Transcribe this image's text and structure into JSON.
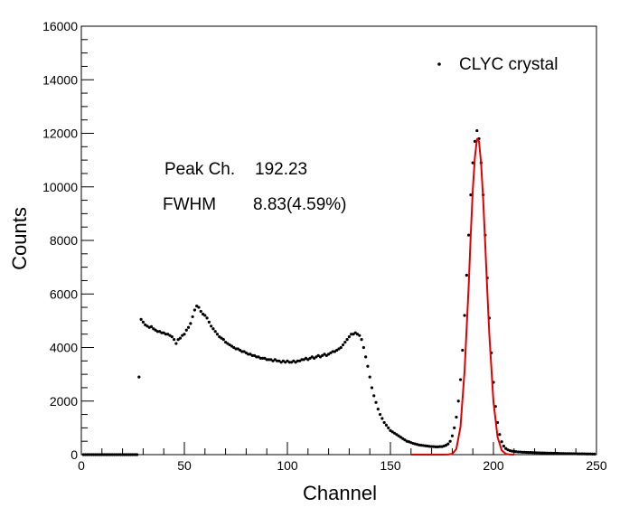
{
  "chart_data": {
    "type": "scatter",
    "title": "",
    "xlabel": "Channel",
    "ylabel": "Counts",
    "xlim": [
      0,
      250
    ],
    "ylim": [
      0,
      16000
    ],
    "x_ticks": [
      0,
      50,
      100,
      150,
      200,
      250
    ],
    "y_ticks": [
      0,
      2000,
      4000,
      6000,
      8000,
      10000,
      12000,
      14000,
      16000
    ],
    "grid": false,
    "legend_position": "top-right",
    "legend": [
      {
        "label": "CLYC crystal",
        "marker": "dot"
      }
    ],
    "annotations": [
      {
        "label": "Peak Ch.",
        "value": "192.23"
      },
      {
        "label": "FWHM",
        "value": "8.83(4.59%)"
      }
    ],
    "series": [
      {
        "name": "CLYC crystal",
        "style": "marker",
        "color": "#000000",
        "points": [
          [
            1,
            0
          ],
          [
            2,
            0
          ],
          [
            3,
            0
          ],
          [
            4,
            0
          ],
          [
            5,
            0
          ],
          [
            6,
            0
          ],
          [
            7,
            0
          ],
          [
            8,
            0
          ],
          [
            9,
            0
          ],
          [
            10,
            0
          ],
          [
            11,
            0
          ],
          [
            12,
            0
          ],
          [
            13,
            0
          ],
          [
            14,
            0
          ],
          [
            15,
            0
          ],
          [
            16,
            0
          ],
          [
            17,
            0
          ],
          [
            18,
            0
          ],
          [
            19,
            0
          ],
          [
            20,
            0
          ],
          [
            21,
            0
          ],
          [
            22,
            0
          ],
          [
            23,
            0
          ],
          [
            24,
            0
          ],
          [
            25,
            0
          ],
          [
            26,
            0
          ],
          [
            27,
            0
          ],
          [
            28,
            2900
          ],
          [
            29,
            5050
          ],
          [
            30,
            4950
          ],
          [
            31,
            4850
          ],
          [
            32,
            4800
          ],
          [
            33,
            4750
          ],
          [
            34,
            4780
          ],
          [
            35,
            4700
          ],
          [
            36,
            4650
          ],
          [
            37,
            4600
          ],
          [
            38,
            4600
          ],
          [
            39,
            4550
          ],
          [
            40,
            4550
          ],
          [
            41,
            4500
          ],
          [
            42,
            4500
          ],
          [
            43,
            4450
          ],
          [
            44,
            4400
          ],
          [
            45,
            4300
          ],
          [
            46,
            4150
          ],
          [
            47,
            4300
          ],
          [
            48,
            4350
          ],
          [
            49,
            4450
          ],
          [
            50,
            4500
          ],
          [
            51,
            4650
          ],
          [
            52,
            4750
          ],
          [
            53,
            4900
          ],
          [
            54,
            5150
          ],
          [
            55,
            5400
          ],
          [
            56,
            5550
          ],
          [
            57,
            5500
          ],
          [
            58,
            5350
          ],
          [
            59,
            5250
          ],
          [
            60,
            5200
          ],
          [
            61,
            5100
          ],
          [
            62,
            4950
          ],
          [
            63,
            4800
          ],
          [
            64,
            4700
          ],
          [
            65,
            4600
          ],
          [
            66,
            4500
          ],
          [
            67,
            4400
          ],
          [
            68,
            4350
          ],
          [
            69,
            4300
          ],
          [
            70,
            4200
          ],
          [
            71,
            4150
          ],
          [
            72,
            4100
          ],
          [
            73,
            4050
          ],
          [
            74,
            4000
          ],
          [
            75,
            3950
          ],
          [
            76,
            3950
          ],
          [
            77,
            3900
          ],
          [
            78,
            3850
          ],
          [
            79,
            3850
          ],
          [
            80,
            3800
          ],
          [
            81,
            3750
          ],
          [
            82,
            3750
          ],
          [
            83,
            3700
          ],
          [
            84,
            3700
          ],
          [
            85,
            3650
          ],
          [
            86,
            3650
          ],
          [
            87,
            3600
          ],
          [
            88,
            3600
          ],
          [
            89,
            3600
          ],
          [
            90,
            3550
          ],
          [
            91,
            3550
          ],
          [
            92,
            3550
          ],
          [
            93,
            3500
          ],
          [
            94,
            3550
          ],
          [
            95,
            3500
          ],
          [
            96,
            3500
          ],
          [
            97,
            3450
          ],
          [
            98,
            3500
          ],
          [
            99,
            3450
          ],
          [
            100,
            3500
          ],
          [
            101,
            3450
          ],
          [
            102,
            3450
          ],
          [
            103,
            3500
          ],
          [
            104,
            3450
          ],
          [
            105,
            3500
          ],
          [
            106,
            3500
          ],
          [
            107,
            3550
          ],
          [
            108,
            3550
          ],
          [
            109,
            3600
          ],
          [
            110,
            3550
          ],
          [
            111,
            3600
          ],
          [
            112,
            3650
          ],
          [
            113,
            3600
          ],
          [
            114,
            3650
          ],
          [
            115,
            3700
          ],
          [
            116,
            3650
          ],
          [
            117,
            3700
          ],
          [
            118,
            3750
          ],
          [
            119,
            3700
          ],
          [
            120,
            3750
          ],
          [
            121,
            3800
          ],
          [
            122,
            3850
          ],
          [
            123,
            3850
          ],
          [
            124,
            3900
          ],
          [
            125,
            3950
          ],
          [
            126,
            4000
          ],
          [
            127,
            4100
          ],
          [
            128,
            4200
          ],
          [
            129,
            4300
          ],
          [
            130,
            4400
          ],
          [
            131,
            4500
          ],
          [
            132,
            4500
          ],
          [
            133,
            4550
          ],
          [
            134,
            4500
          ],
          [
            135,
            4450
          ],
          [
            136,
            4300
          ],
          [
            137,
            4000
          ],
          [
            138,
            3650
          ],
          [
            139,
            3300
          ],
          [
            140,
            2900
          ],
          [
            141,
            2500
          ],
          [
            142,
            2200
          ],
          [
            143,
            1950
          ],
          [
            144,
            1700
          ],
          [
            145,
            1500
          ],
          [
            146,
            1350
          ],
          [
            147,
            1200
          ],
          [
            148,
            1100
          ],
          [
            149,
            1000
          ],
          [
            150,
            900
          ],
          [
            151,
            850
          ],
          [
            152,
            800
          ],
          [
            153,
            750
          ],
          [
            154,
            700
          ],
          [
            155,
            650
          ],
          [
            156,
            600
          ],
          [
            157,
            550
          ],
          [
            158,
            500
          ],
          [
            159,
            480
          ],
          [
            160,
            450
          ],
          [
            161,
            420
          ],
          [
            162,
            400
          ],
          [
            163,
            380
          ],
          [
            164,
            360
          ],
          [
            165,
            350
          ],
          [
            166,
            340
          ],
          [
            167,
            330
          ],
          [
            168,
            320
          ],
          [
            169,
            310
          ],
          [
            170,
            300
          ],
          [
            171,
            300
          ],
          [
            172,
            290
          ],
          [
            173,
            290
          ],
          [
            174,
            300
          ],
          [
            175,
            300
          ],
          [
            176,
            320
          ],
          [
            177,
            350
          ],
          [
            178,
            400
          ],
          [
            179,
            500
          ],
          [
            180,
            700
          ],
          [
            181,
            1000
          ],
          [
            182,
            1400
          ],
          [
            183,
            2000
          ],
          [
            184,
            2800
          ],
          [
            185,
            3900
          ],
          [
            186,
            5200
          ],
          [
            187,
            6700
          ],
          [
            188,
            8200
          ],
          [
            189,
            9700
          ],
          [
            190,
            10900
          ],
          [
            191,
            11700
          ],
          [
            192,
            12100
          ],
          [
            193,
            11800
          ],
          [
            194,
            10900
          ],
          [
            195,
            9700
          ],
          [
            196,
            8200
          ],
          [
            197,
            6600
          ],
          [
            198,
            5100
          ],
          [
            199,
            3800
          ],
          [
            200,
            2700
          ],
          [
            201,
            1800
          ],
          [
            202,
            1200
          ],
          [
            203,
            750
          ],
          [
            204,
            480
          ],
          [
            205,
            320
          ],
          [
            206,
            230
          ],
          [
            207,
            180
          ],
          [
            208,
            150
          ],
          [
            209,
            130
          ],
          [
            210,
            120
          ],
          [
            211,
            110
          ],
          [
            212,
            100
          ],
          [
            213,
            100
          ],
          [
            214,
            90
          ],
          [
            215,
            90
          ],
          [
            216,
            85
          ],
          [
            217,
            80
          ],
          [
            218,
            80
          ],
          [
            219,
            75
          ],
          [
            220,
            75
          ],
          [
            221,
            70
          ],
          [
            222,
            70
          ],
          [
            223,
            65
          ],
          [
            224,
            65
          ],
          [
            225,
            60
          ],
          [
            226,
            60
          ],
          [
            227,
            55
          ],
          [
            228,
            55
          ],
          [
            229,
            50
          ],
          [
            230,
            50
          ],
          [
            231,
            50
          ],
          [
            232,
            45
          ],
          [
            233,
            45
          ],
          [
            234,
            45
          ],
          [
            235,
            40
          ],
          [
            236,
            40
          ],
          [
            237,
            40
          ],
          [
            238,
            35
          ],
          [
            239,
            35
          ],
          [
            240,
            35
          ],
          [
            241,
            30
          ],
          [
            242,
            30
          ],
          [
            243,
            30
          ],
          [
            244,
            30
          ],
          [
            245,
            25
          ],
          [
            246,
            25
          ],
          [
            247,
            25
          ],
          [
            248,
            20
          ],
          [
            249,
            20
          ]
        ]
      },
      {
        "name": "",
        "style": "line",
        "color": "#e00000",
        "points": [
          [
            160,
            0
          ],
          [
            175,
            0
          ],
          [
            178,
            3
          ],
          [
            180,
            28
          ],
          [
            182,
            212
          ],
          [
            184,
            1034
          ],
          [
            186,
            3141
          ],
          [
            188,
            6322
          ],
          [
            189,
            8245
          ],
          [
            190,
            9920
          ],
          [
            191,
            11107
          ],
          [
            192,
            11778
          ],
          [
            192.23,
            11800
          ],
          [
            193,
            11691
          ],
          [
            194,
            10889
          ],
          [
            195,
            9555
          ],
          [
            196,
            7877
          ],
          [
            197,
            6138
          ],
          [
            198,
            4491
          ],
          [
            200,
            1978
          ],
          [
            202,
            658
          ],
          [
            204,
            163
          ],
          [
            206,
            30
          ],
          [
            208,
            4
          ],
          [
            210,
            0
          ]
        ]
      }
    ]
  }
}
